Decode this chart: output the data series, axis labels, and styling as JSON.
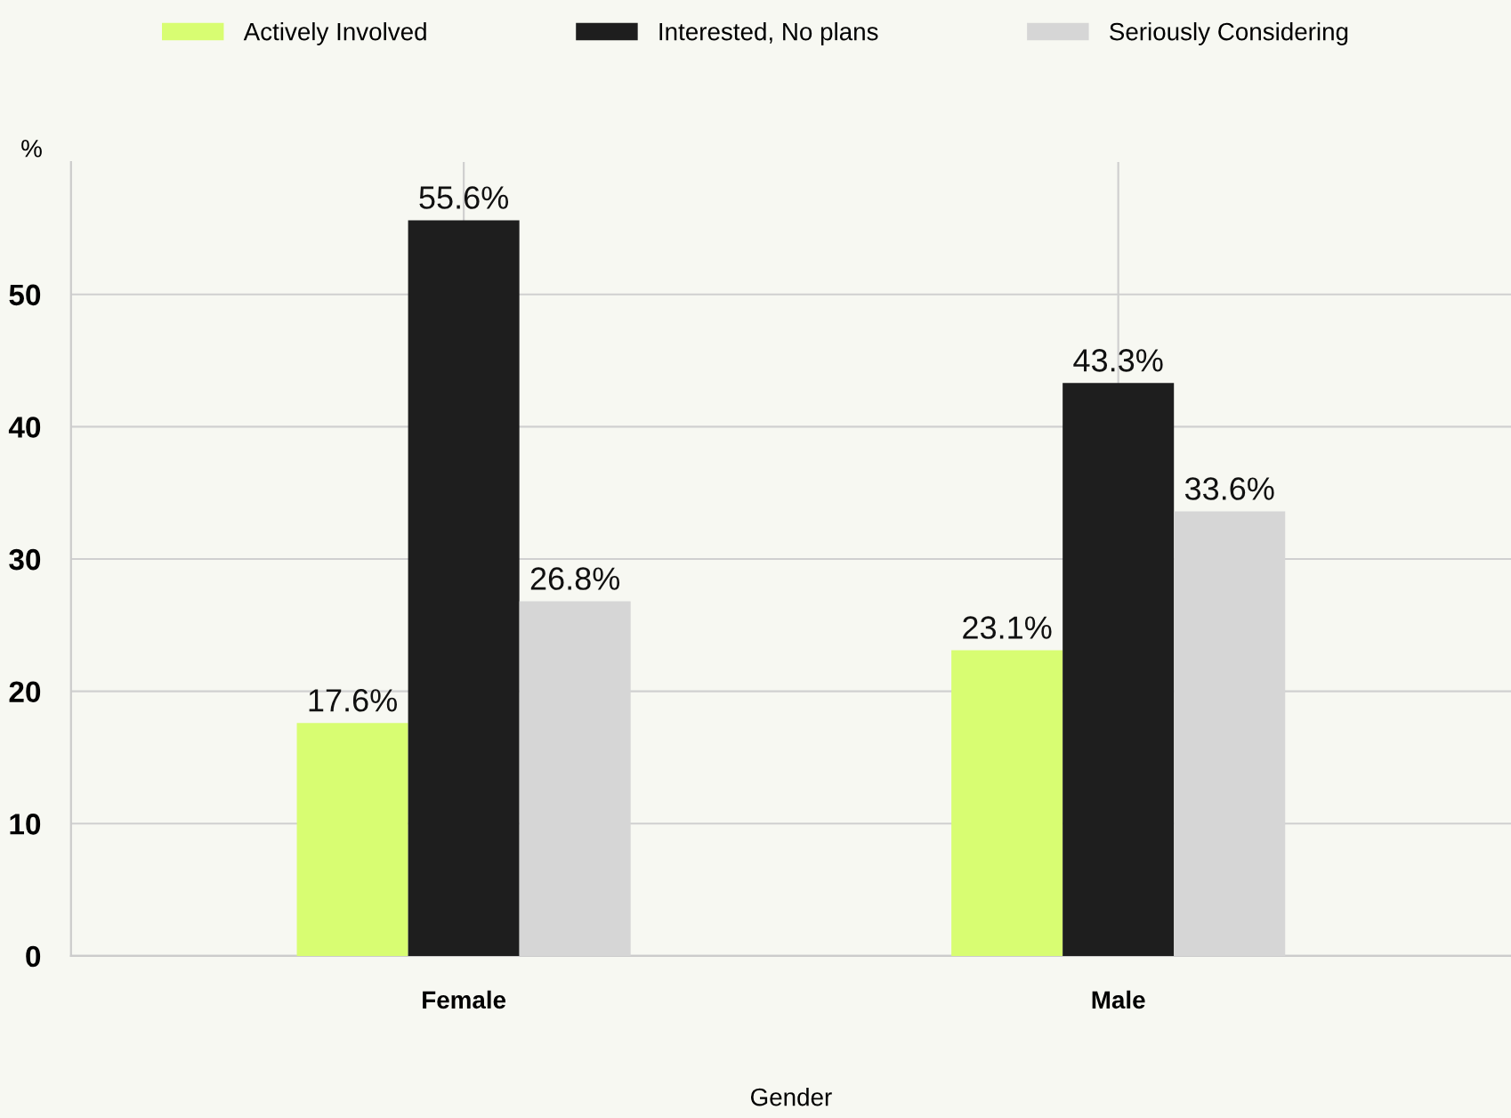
{
  "chart_data": {
    "type": "bar",
    "xlabel": "Gender",
    "ylabel": "%",
    "categories": [
      "Female",
      "Male"
    ],
    "series": [
      {
        "name": "Actively Involved",
        "color": "#d8fd72",
        "values": [
          17.6,
          23.1
        ],
        "value_labels": [
          "17.6%",
          "23.1%"
        ]
      },
      {
        "name": "Interested, No plans",
        "color": "#1e1e1e",
        "values": [
          55.6,
          43.3
        ],
        "value_labels": [
          "55.6%",
          "43.3%"
        ]
      },
      {
        "name": "Seriously Considering",
        "color": "#d6d6d6",
        "values": [
          26.8,
          33.6
        ],
        "value_labels": [
          "26.8%",
          "33.6%"
        ]
      }
    ],
    "ylim": [
      0,
      60
    ],
    "yticks": [
      0,
      10,
      20,
      30,
      40,
      50
    ],
    "grid": true,
    "legend": "top"
  }
}
